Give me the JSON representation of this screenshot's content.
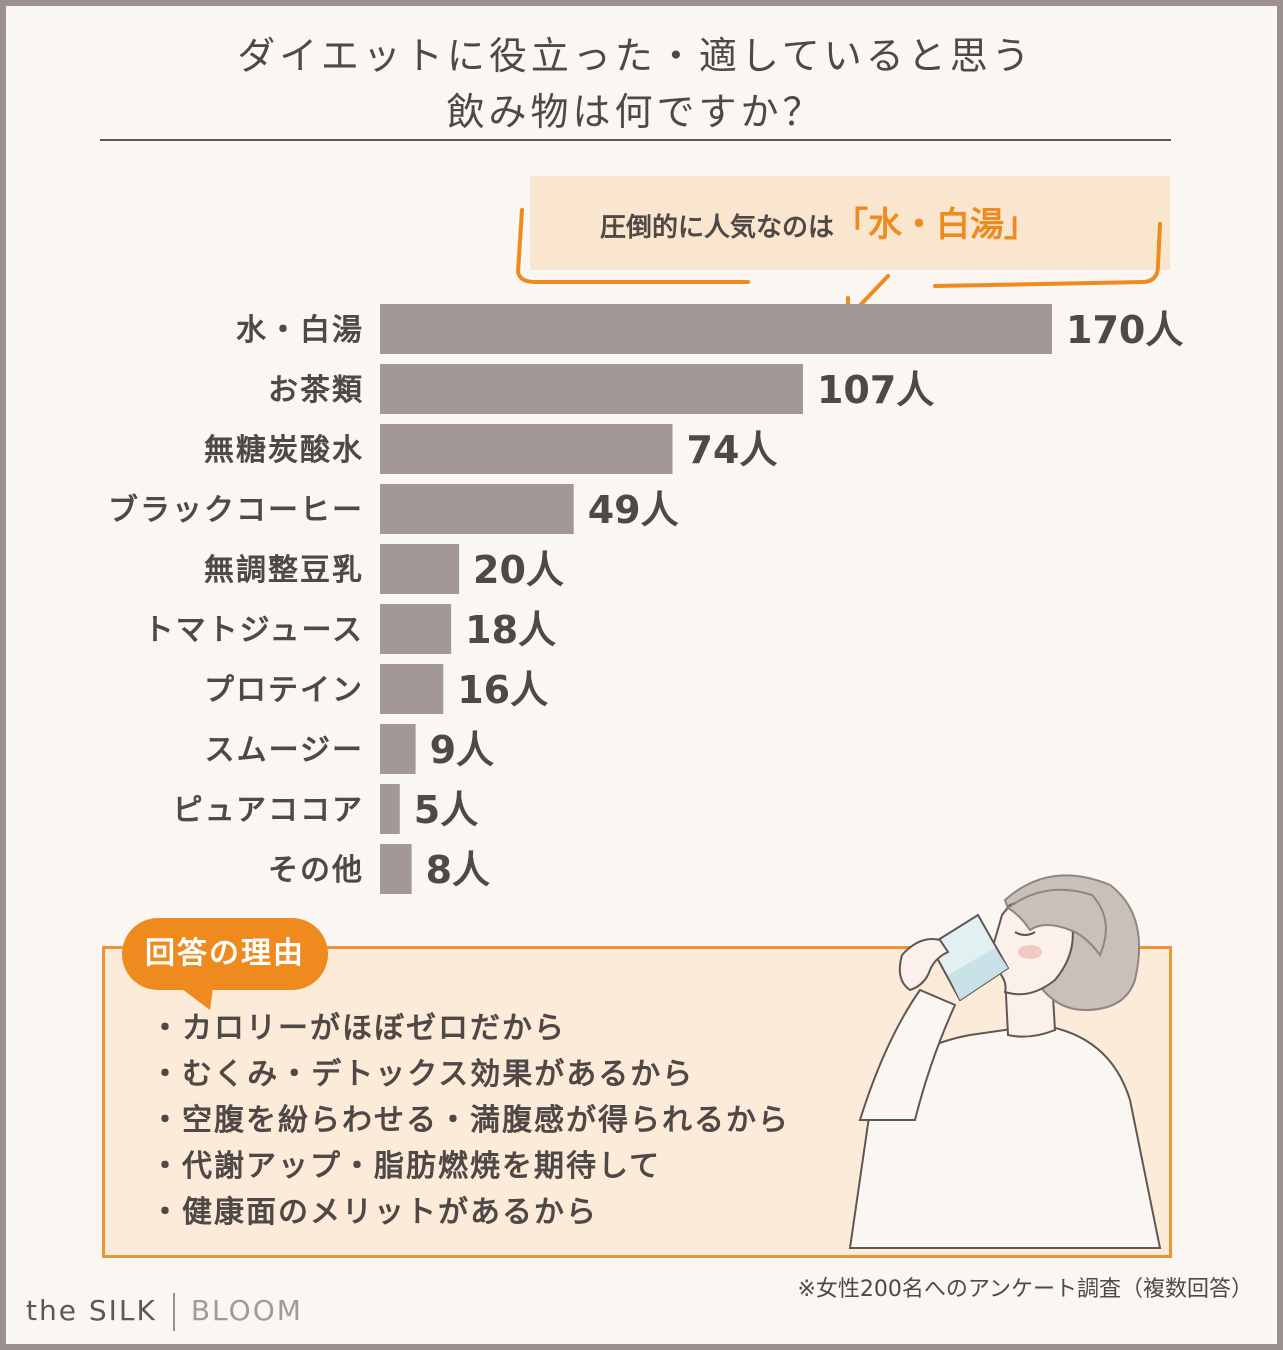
{
  "title_line1": "ダイエットに役立った・適していると思う",
  "title_line2": "飲み物は何ですか？",
  "callout": {
    "text": "圧倒的に人気なのは",
    "highlight": "「水・白湯」"
  },
  "colors": {
    "bar": "#a39896",
    "accent": "#ee8a1e",
    "text": "#4f4846",
    "background": "#faf6f1",
    "frame": "#9c918e"
  },
  "chart_data": {
    "type": "bar",
    "orientation": "horizontal",
    "categories": [
      "水・白湯",
      "お茶類",
      "無糖炭酸水",
      "ブラックコーヒー",
      "無調整豆乳",
      "トマトジュース",
      "プロテイン",
      "スムージー",
      "ピュアココア",
      "その他"
    ],
    "values": [
      170,
      107,
      74,
      49,
      20,
      18,
      16,
      9,
      5,
      8
    ],
    "value_suffix": "人",
    "title": "ダイエットに役立った・適していると思う飲み物は何ですか？",
    "xlabel": "",
    "ylabel": "",
    "grid": false,
    "legend": "none"
  },
  "reasons": {
    "tag": "回答の理由",
    "items": [
      "・カロリーがほぼゼロだから",
      "・むくみ・デトックス効果があるから",
      "・空腹を紛らわせる・満腹感が得られるから",
      "・代謝アップ・脂肪燃焼を期待して",
      "・健康面のメリットがあるから"
    ]
  },
  "footnote": "※女性200名へのアンケート調査（複数回答）",
  "brand": {
    "left": "the SILK",
    "right": "BLOOM"
  }
}
